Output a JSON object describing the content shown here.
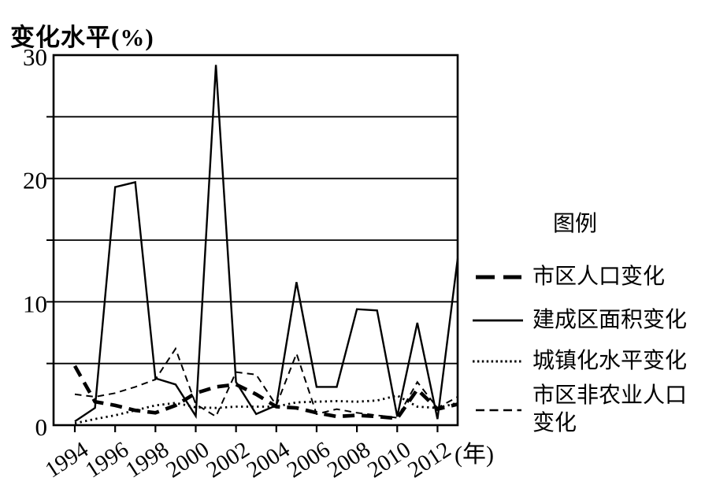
{
  "title": "变化水平(%)",
  "x_axis_unit": "(年)",
  "legend": {
    "title": "图例",
    "items": [
      {
        "label": "市区人口变化",
        "style": "thick-dash"
      },
      {
        "label": "建成区面积变化",
        "style": "solid"
      },
      {
        "label": "城镇化水平变化",
        "style": "dotted"
      },
      {
        "label": "市区非农业人口变化",
        "style": "thin-dash"
      }
    ]
  },
  "colors": {
    "foreground": "#000000",
    "background": "#ffffff"
  },
  "chart_data": {
    "type": "line",
    "title": "变化水平(%)",
    "ylabel": "变化水平(%)",
    "xlabel": "(年)",
    "ylim": [
      0,
      30
    ],
    "grid_interval": 5,
    "grid": true,
    "legend_position": "right",
    "ytick_labels": [
      0,
      10,
      20,
      30
    ],
    "xtick_labels": [
      "1994",
      "1996",
      "1998",
      "2000",
      "2002",
      "2004",
      "2006",
      "2008",
      "2010",
      "2012"
    ],
    "x": [
      1994,
      1995,
      1996,
      1997,
      1998,
      1999,
      2000,
      2001,
      2002,
      2003,
      2004,
      2005,
      2006,
      2007,
      2008,
      2009,
      2010,
      2011,
      2012,
      2013
    ],
    "series": [
      {
        "name": "市区人口变化",
        "style": "thick-dash",
        "values": [
          4.8,
          1.9,
          1.6,
          1.2,
          1.0,
          1.6,
          2.6,
          3.1,
          3.3,
          2.5,
          1.5,
          1.4,
          1.0,
          0.7,
          0.8,
          0.7,
          0.55,
          2.9,
          1.3,
          1.7
        ]
      },
      {
        "name": "建成区面积变化",
        "style": "solid",
        "values": [
          0.3,
          1.4,
          19.3,
          19.7,
          3.8,
          3.3,
          0.75,
          29.2,
          3.5,
          0.9,
          1.6,
          11.6,
          3.1,
          3.1,
          9.4,
          9.3,
          0.7,
          8.3,
          0.5,
          13.5
        ]
      },
      {
        "name": "城镇化水平变化",
        "style": "dotted",
        "values": [
          0.15,
          0.5,
          0.8,
          1.2,
          1.6,
          1.8,
          1.45,
          1.4,
          1.5,
          1.5,
          1.5,
          1.85,
          1.9,
          1.95,
          1.9,
          2.0,
          2.4,
          1.5,
          1.4,
          1.8
        ]
      },
      {
        "name": "市区非农业人口变化",
        "style": "thin-dash",
        "values": [
          2.5,
          2.3,
          2.6,
          3.1,
          3.7,
          6.2,
          1.7,
          0.7,
          4.3,
          4.1,
          1.6,
          5.8,
          0.9,
          1.3,
          1.0,
          0.8,
          0.6,
          3.5,
          1.4,
          2.3
        ]
      }
    ]
  }
}
